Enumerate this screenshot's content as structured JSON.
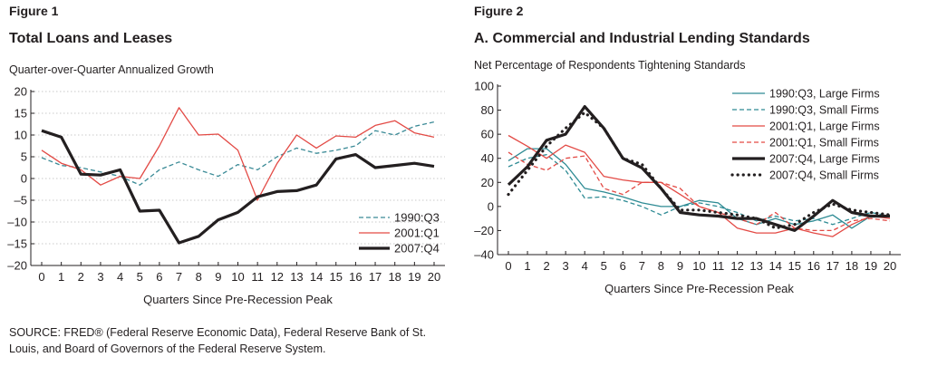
{
  "figure1": {
    "label": "Figure 1",
    "title": "Total Loans and Leases",
    "chart_data": {
      "type": "line",
      "title": "Total Loans and Leases",
      "ylabel": "Quarter-over-Quarter Annualized Growth",
      "xlabel": "Quarters Since Pre-Recession Peak",
      "x": [
        0,
        1,
        2,
        3,
        4,
        5,
        6,
        7,
        8,
        9,
        10,
        11,
        12,
        13,
        14,
        15,
        16,
        17,
        18,
        19,
        20
      ],
      "ylim": [
        -20,
        20
      ],
      "yticks": [
        -20,
        -15,
        -10,
        -5,
        0,
        5,
        10,
        15,
        20
      ],
      "ytick_labels": [
        "–20",
        "–15",
        "–10",
        "–5",
        "0",
        "5",
        "10",
        "15",
        "20"
      ],
      "grid": true,
      "legend": "bottom-right",
      "series": [
        {
          "name": "1990:Q3",
          "color": "#3a8a96",
          "dash": "dashed",
          "width": 1.3,
          "values": [
            4.8,
            3.0,
            2.5,
            1.5,
            0.5,
            -1.5,
            2.0,
            3.8,
            2.0,
            0.5,
            3.2,
            2.0,
            5.0,
            7.0,
            5.8,
            6.5,
            7.5,
            11.0,
            10.0,
            12.0,
            13.0
          ]
        },
        {
          "name": "2001:Q1",
          "color": "#e34a45",
          "dash": "solid",
          "width": 1.3,
          "values": [
            6.5,
            3.5,
            2.0,
            -1.5,
            0.5,
            0.0,
            7.5,
            16.3,
            10.0,
            10.2,
            6.5,
            -5.0,
            3.5,
            10.0,
            7.0,
            9.8,
            9.5,
            12.2,
            13.3,
            10.5,
            9.5
          ]
        },
        {
          "name": "2007:Q4",
          "color": "#231f20",
          "dash": "solid",
          "width": 3.2,
          "values": [
            11.0,
            9.5,
            1.0,
            0.8,
            2.0,
            -7.5,
            -7.3,
            -14.8,
            -13.3,
            -9.5,
            -7.8,
            -4.2,
            -3.0,
            -2.8,
            -1.5,
            4.5,
            5.5,
            2.5,
            3.0,
            3.5,
            2.8
          ]
        }
      ]
    },
    "source": "SOURCE: FRED® (Federal Reserve Economic Data), Federal Reserve Bank of St. Louis, and Board of Governors of the Federal Reserve System."
  },
  "figure2": {
    "label": "Figure 2",
    "title": "A. Commercial and Industrial Lending Standards",
    "chart_data": {
      "type": "line",
      "title": "A. Commercial and Industrial Lending Standards",
      "ylabel": "Net Percentage of Respondents Tightening Standards",
      "xlabel": "Quarters Since Pre-Recession Peak",
      "x": [
        0,
        1,
        2,
        3,
        4,
        5,
        6,
        7,
        8,
        9,
        10,
        11,
        12,
        13,
        14,
        15,
        16,
        17,
        18,
        19,
        20
      ],
      "ylim": [
        -40,
        100
      ],
      "yticks": [
        -40,
        -20,
        0,
        20,
        40,
        60,
        80,
        100
      ],
      "ytick_labels": [
        "–40",
        "–20",
        "0",
        "20",
        "40",
        "60",
        "80",
        "100"
      ],
      "grid": false,
      "legend": "top-right",
      "series": [
        {
          "name": "1990:Q3, Large Firms",
          "color": "#2e8b94",
          "dash": "solid",
          "width": 1.3,
          "values": [
            38,
            48,
            48,
            35,
            15,
            12,
            8,
            3,
            0,
            0,
            5,
            3,
            -10,
            -15,
            -10,
            -15,
            -12,
            -7,
            -18,
            -8,
            -8
          ]
        },
        {
          "name": "1990:Q3, Small Firms",
          "color": "#2e8b94",
          "dash": "dashed",
          "width": 1.3,
          "values": [
            33,
            40,
            43,
            30,
            7,
            8,
            5,
            0,
            -7,
            0,
            3,
            0,
            -5,
            -12,
            -8,
            -12,
            -10,
            -15,
            -10,
            -5,
            -8
          ]
        },
        {
          "name": "2001:Q1, Large Firms",
          "color": "#e34a45",
          "dash": "solid",
          "width": 1.3,
          "values": [
            59,
            50,
            40,
            51,
            45,
            25,
            22,
            20,
            20,
            10,
            0,
            -5,
            -18,
            -22,
            -22,
            -18,
            -22,
            -25,
            -15,
            -8,
            -10
          ]
        },
        {
          "name": "2001:Q1, Small Firms",
          "color": "#e34a45",
          "dash": "dashed",
          "width": 1.3,
          "values": [
            45,
            35,
            30,
            40,
            42,
            15,
            10,
            20,
            20,
            15,
            0,
            -5,
            -10,
            -15,
            -5,
            -18,
            -20,
            -20,
            -12,
            -10,
            -12
          ]
        },
        {
          "name": "2007:Q4, Large Firms",
          "color": "#231f20",
          "dash": "solid",
          "width": 3.2,
          "values": [
            18,
            33,
            55,
            60,
            83,
            65,
            40,
            32,
            15,
            -5,
            -7,
            -8,
            -10,
            -10,
            -15,
            -20,
            -8,
            5,
            -5,
            -8,
            -8
          ]
        },
        {
          "name": "2007:Q4, Small Firms",
          "color": "#231f20",
          "dash": "dotted",
          "width": 3.2,
          "values": [
            10,
            30,
            50,
            65,
            78,
            65,
            40,
            35,
            15,
            -3,
            -3,
            -5,
            -7,
            -10,
            -18,
            -15,
            -5,
            2,
            -3,
            -5,
            -7
          ]
        }
      ]
    }
  }
}
